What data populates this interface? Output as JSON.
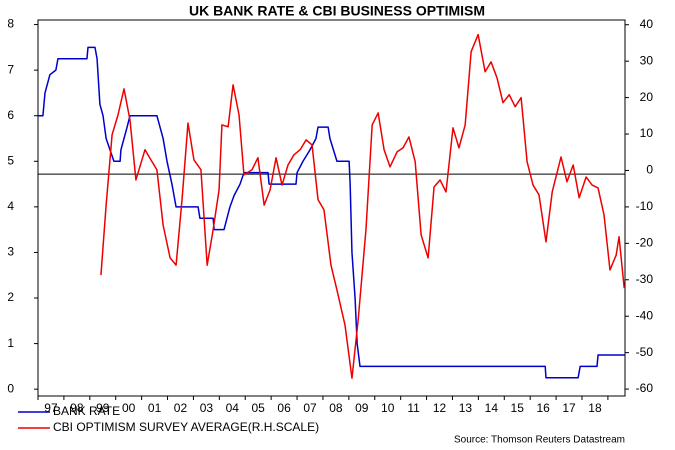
{
  "chart_data": {
    "type": "line",
    "title": "UK BANK RATE & CBI BUSINESS OPTIMISM",
    "source": "Source: Thomson Reuters Datastream",
    "xlim": [
      1997,
      2019.66
    ],
    "xticks": [
      {
        "value": 1997.5,
        "label": "97"
      },
      {
        "value": 1998.5,
        "label": "98"
      },
      {
        "value": 1999.5,
        "label": "99"
      },
      {
        "value": 2000.5,
        "label": "00"
      },
      {
        "value": 2001.5,
        "label": "01"
      },
      {
        "value": 2002.5,
        "label": "02"
      },
      {
        "value": 2003.5,
        "label": "03"
      },
      {
        "value": 2004.5,
        "label": "04"
      },
      {
        "value": 2005.5,
        "label": "05"
      },
      {
        "value": 2006.5,
        "label": "06"
      },
      {
        "value": 2007.5,
        "label": "07"
      },
      {
        "value": 2008.5,
        "label": "08"
      },
      {
        "value": 2009.5,
        "label": "09"
      },
      {
        "value": 2010.5,
        "label": "10"
      },
      {
        "value": 2011.5,
        "label": "11"
      },
      {
        "value": 2012.5,
        "label": "12"
      },
      {
        "value": 2013.5,
        "label": "13"
      },
      {
        "value": 2014.5,
        "label": "14"
      },
      {
        "value": 2015.5,
        "label": "15"
      },
      {
        "value": 2016.5,
        "label": "16"
      },
      {
        "value": 2017.5,
        "label": "17"
      },
      {
        "value": 2018.5,
        "label": "18"
      }
    ],
    "xminorticks": [
      1997,
      1998,
      1999,
      2000,
      2001,
      2002,
      2003,
      2004,
      2005,
      2006,
      2007,
      2008,
      2009,
      2010,
      2011,
      2012,
      2013,
      2014,
      2015,
      2016,
      2017,
      2018,
      2019
    ],
    "ylim": [
      -0.15,
      8.1
    ],
    "yticks": [
      0,
      1,
      2,
      3,
      4,
      5,
      6,
      7,
      8
    ],
    "y2lim": [
      -61.9,
      41.3
    ],
    "y2ticks": [
      -60,
      -50,
      -40,
      -30,
      -20,
      -10,
      0,
      10,
      20,
      30,
      40
    ],
    "reference_line": {
      "axis": "y2",
      "value": -1,
      "color": "#000000"
    },
    "legend": "bottom-left",
    "series": [
      {
        "name": "BANK RATE",
        "color": "#0000cc",
        "axis": "y",
        "x": [
          1997.0,
          1997.19,
          1997.27,
          1997.46,
          1997.69,
          1997.77,
          1998.89,
          1998.93,
          1999.2,
          1999.28,
          1999.39,
          1999.51,
          1999.63,
          1999.78,
          1999.93,
          2000.17,
          2000.2,
          2000.32,
          2000.44,
          2000.55,
          2001.59,
          2001.71,
          2001.83,
          2001.98,
          2002.17,
          2002.33,
          2003.18,
          2003.25,
          2003.76,
          2003.8,
          2004.18,
          2004.41,
          2004.57,
          2004.8,
          2004.95,
          2005.88,
          2005.92,
          2006.96,
          2007.0,
          2007.23,
          2007.5,
          2007.73,
          2007.81,
          2008.2,
          2008.27,
          2008.54,
          2009.01,
          2009.05,
          2009.12,
          2009.24,
          2009.32,
          2009.43,
          2016.58,
          2016.61,
          2017.85,
          2017.93,
          2018.58,
          2018.62,
          2019.66
        ],
        "values": [
          6.0,
          6.0,
          6.5,
          6.9,
          7.0,
          7.25,
          7.25,
          7.5,
          7.5,
          7.25,
          6.25,
          6.0,
          5.5,
          5.25,
          5.0,
          5.0,
          5.25,
          5.5,
          5.75,
          6.0,
          6.0,
          5.75,
          5.5,
          5.0,
          4.5,
          4.0,
          4.0,
          3.75,
          3.75,
          3.5,
          3.5,
          4.0,
          4.25,
          4.5,
          4.75,
          4.75,
          4.5,
          4.5,
          4.75,
          5.0,
          5.25,
          5.5,
          5.75,
          5.75,
          5.5,
          5.0,
          5.0,
          4.5,
          3.0,
          2.0,
          1.0,
          0.5,
          0.5,
          0.25,
          0.25,
          0.5,
          0.5,
          0.75,
          0.75
        ]
      },
      {
        "name": "CBI OPTIMISM SURVEY AVERAGE(R.H.SCALE)",
        "color": "#ee0000",
        "axis": "y2",
        "x": [
          1999.43,
          1999.63,
          1999.86,
          2000.09,
          2000.32,
          2000.55,
          2000.78,
          2001.13,
          2001.36,
          2001.59,
          2001.83,
          2002.1,
          2002.33,
          2002.56,
          2002.79,
          2003.02,
          2003.29,
          2003.53,
          2003.76,
          2003.99,
          2004.1,
          2004.34,
          2004.53,
          2004.76,
          2004.95,
          2005.26,
          2005.49,
          2005.73,
          2005.96,
          2006.19,
          2006.42,
          2006.65,
          2006.88,
          2007.12,
          2007.35,
          2007.58,
          2007.81,
          2008.04,
          2008.31,
          2008.54,
          2008.85,
          2009.12,
          2009.36,
          2009.66,
          2009.9,
          2010.13,
          2010.36,
          2010.59,
          2010.86,
          2011.09,
          2011.32,
          2011.56,
          2011.79,
          2012.06,
          2012.29,
          2012.52,
          2012.75,
          2013.02,
          2013.25,
          2013.49,
          2013.72,
          2013.99,
          2014.26,
          2014.49,
          2014.72,
          2014.95,
          2015.19,
          2015.42,
          2015.65,
          2015.88,
          2016.11,
          2016.34,
          2016.61,
          2016.85,
          2017.19,
          2017.42,
          2017.66,
          2017.89,
          2018.16,
          2018.39,
          2018.62,
          2018.85,
          2019.08,
          2019.32,
          2019.43,
          2019.63
        ],
        "values": [
          -28.7,
          -9.5,
          9.8,
          15.3,
          22.4,
          13.9,
          -2.6,
          5.7,
          2.9,
          0.2,
          -15,
          -24,
          -26,
          -8,
          13,
          2.9,
          0.2,
          -26,
          -16.3,
          -5.3,
          12.5,
          12,
          23.5,
          15.3,
          -1.2,
          0.2,
          3.5,
          -9.5,
          -5.3,
          3.5,
          -4,
          1.5,
          4.3,
          5.7,
          8.4,
          7,
          -8,
          -10.8,
          -26,
          -32.8,
          -42.4,
          -57,
          -41,
          -16.3,
          12.5,
          15.8,
          5.7,
          1,
          5.1,
          6.2,
          9.2,
          2.4,
          -17.7,
          -24,
          -4.5,
          -2.6,
          -5.9,
          11.7,
          6.2,
          12.5,
          32.6,
          37.3,
          27.1,
          29.8,
          25.4,
          18.6,
          20.8,
          17.5,
          20,
          2.4,
          -4,
          -6.7,
          -19.6,
          -5.9,
          3.7,
          -3.1,
          1.5,
          -7.5,
          -1.8,
          -4,
          -4.8,
          -12.2,
          -27.3,
          -23.2,
          -18.2,
          -32.3
        ]
      }
    ]
  }
}
